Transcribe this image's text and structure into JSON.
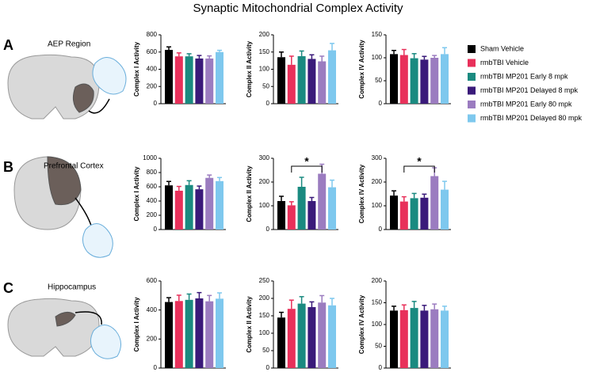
{
  "title": "Synaptic Mitochondrial Complex Activity",
  "panels": [
    {
      "letter": "A",
      "region": "AEP Region"
    },
    {
      "letter": "B",
      "region": "Prefrontal Cortex"
    },
    {
      "letter": "C",
      "region": "Hippocampus"
    }
  ],
  "legend": {
    "names": [
      "Sham Vehicle",
      "rmbTBI Vehicle",
      "rmbTBI MP201 Early 8 mpk",
      "rmbTBI MP201 Delayed 8 mpk",
      "rmbTBI MP201 Early 80 mpk",
      "rmbTBI MP201 Delayed 80 mpk"
    ],
    "colors": [
      "#000000",
      "#e8305a",
      "#1a8a80",
      "#3a1a7a",
      "#9b7cc0",
      "#7ec8ee"
    ]
  },
  "chart_data": [
    {
      "type": "bar",
      "ylabel": "Complex I Activity",
      "ylim": [
        0,
        800
      ],
      "yticks": [
        0,
        200,
        400,
        600,
        800
      ],
      "values": [
        625,
        550,
        550,
        525,
        525,
        600
      ],
      "errors": [
        35,
        40,
        30,
        35,
        30,
        20
      ]
    },
    {
      "type": "bar",
      "ylabel": "Complex II Activity",
      "ylim": [
        0,
        200
      ],
      "yticks": [
        0,
        50,
        100,
        150,
        200
      ],
      "values": [
        135,
        113,
        138,
        130,
        123,
        155
      ],
      "errors": [
        15,
        25,
        15,
        12,
        15,
        20
      ]
    },
    {
      "type": "bar",
      "ylabel": "Complex IV Activity",
      "ylim": [
        0,
        150
      ],
      "yticks": [
        0,
        50,
        100,
        150
      ],
      "values": [
        108,
        106,
        99,
        96,
        100,
        108
      ],
      "errors": [
        8,
        12,
        10,
        7,
        5,
        14
      ]
    },
    {
      "type": "bar",
      "ylabel": "Complex I Activity",
      "ylim": [
        0,
        1000
      ],
      "yticks": [
        0,
        200,
        400,
        600,
        800,
        1000
      ],
      "values": [
        620,
        545,
        625,
        565,
        725,
        680
      ],
      "errors": [
        55,
        60,
        60,
        45,
        40,
        50
      ]
    },
    {
      "type": "bar",
      "ylabel": "Complex II Activity",
      "ylim": [
        0,
        300
      ],
      "yticks": [
        0,
        100,
        200,
        300
      ],
      "values": [
        120,
        102,
        180,
        120,
        235,
        178
      ],
      "errors": [
        20,
        15,
        40,
        15,
        40,
        30
      ],
      "annotations": [
        {
          "text": "*",
          "from": 1,
          "to": 4
        }
      ]
    },
    {
      "type": "bar",
      "ylabel": "Complex IV Activity",
      "ylim": [
        0,
        300
      ],
      "yticks": [
        0,
        100,
        200,
        300
      ],
      "values": [
        143,
        118,
        132,
        134,
        225,
        168
      ],
      "errors": [
        20,
        20,
        20,
        15,
        35,
        35
      ],
      "annotations": [
        {
          "text": "*",
          "from": 1,
          "to": 4
        }
      ]
    },
    {
      "type": "bar",
      "ylabel": "Complex I Activity",
      "ylim": [
        0,
        600
      ],
      "yticks": [
        0,
        200,
        400,
        600
      ],
      "values": [
        455,
        462,
        470,
        480,
        460,
        478
      ],
      "errors": [
        30,
        40,
        40,
        40,
        40,
        40
      ]
    },
    {
      "type": "bar",
      "ylabel": "Complex II Activity",
      "ylim": [
        0,
        250
      ],
      "yticks": [
        0,
        50,
        100,
        150,
        200,
        250
      ],
      "values": [
        145,
        170,
        185,
        175,
        188,
        180
      ],
      "errors": [
        15,
        25,
        20,
        15,
        20,
        20
      ]
    },
    {
      "type": "bar",
      "ylabel": "Complex IV Activity",
      "ylim": [
        0,
        200
      ],
      "yticks": [
        0,
        50,
        100,
        150,
        200
      ],
      "values": [
        132,
        133,
        138,
        132,
        135,
        132
      ],
      "errors": [
        10,
        12,
        15,
        12,
        12,
        10
      ]
    }
  ]
}
